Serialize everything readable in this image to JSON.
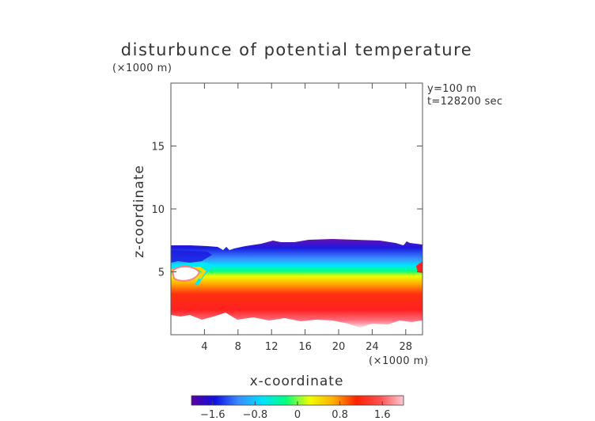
{
  "chart_data": {
    "type": "heatmap",
    "title": "disturbunce of potential temperature",
    "xlabel": "x-coordinate",
    "ylabel": "z-coordinate",
    "x_unit": "(×1000 m)",
    "z_unit": "(×1000 m)",
    "xlim": [
      0,
      30
    ],
    "zlim": [
      0,
      20
    ],
    "x_ticks": [
      "4",
      "8",
      "12",
      "16",
      "20",
      "24",
      "28"
    ],
    "z_ticks": [
      "5",
      "10",
      "15"
    ],
    "annotations": [
      "y=100 m",
      "t=128200 sec"
    ],
    "colorbar": {
      "range": [
        -2.0,
        2.0
      ],
      "ticks": [
        "−1.6",
        "−0.8",
        "0",
        "0.8",
        "1.6"
      ],
      "colors": [
        "#5a00a0",
        "#1010e0",
        "#3a8cff",
        "#00e0ff",
        "#00ff80",
        "#f0ff00",
        "#ffb000",
        "#ff2000",
        "#ff5050",
        "#ffc8d2"
      ]
    },
    "field_description_ranges_km": {
      "cool_layer_top_z": [
        7.2,
        7.6
      ],
      "cool_layer_bottom_z": [
        5.5,
        6.5
      ],
      "warm_layer_top_z": [
        5.0,
        5.5
      ],
      "warm_layer_bottom_z": [
        1.0,
        2.5
      ]
    }
  }
}
